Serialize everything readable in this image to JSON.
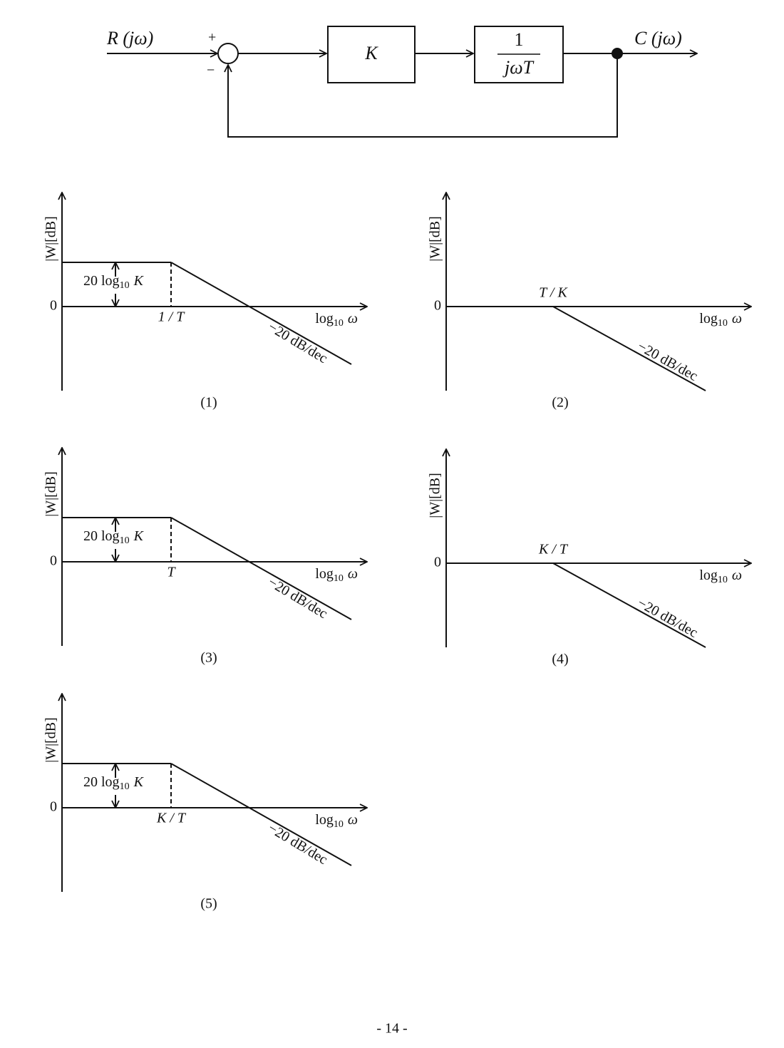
{
  "block_diagram": {
    "input": "R (jω)",
    "plus": "+",
    "minus": "−",
    "gain": "K",
    "integrator": {
      "numerator": "1",
      "denominator": "jωT"
    },
    "output": "C (jω)"
  },
  "plots": [
    {
      "caption": "(1)",
      "y_label": "|W|[dB]",
      "zero": "0",
      "gain_label": {
        "pre": "20 log",
        "sub": "10",
        "post": "K"
      },
      "break_label": "1 / T",
      "x_label": {
        "pre": "log",
        "sub": "10",
        "post": "ω"
      },
      "slope": "−20 dB/dec"
    },
    {
      "caption": "(2)",
      "y_label": "|W|[dB]",
      "zero": "0",
      "break_label": "T / K",
      "x_label": {
        "pre": "log",
        "sub": "10",
        "post": "ω"
      },
      "slope": "−20 dB/dec"
    },
    {
      "caption": "(3)",
      "y_label": "|W|[dB]",
      "zero": "0",
      "gain_label": {
        "pre": "20 log",
        "sub": "10",
        "post": "K"
      },
      "break_label": "T",
      "x_label": {
        "pre": "log",
        "sub": "10",
        "post": "ω"
      },
      "slope": "−20 dB/dec"
    },
    {
      "caption": "(4)",
      "y_label": "|W|[dB]",
      "zero": "0",
      "break_label": "K / T",
      "x_label": {
        "pre": "log",
        "sub": "10",
        "post": "ω"
      },
      "slope": "−20 dB/dec"
    },
    {
      "caption": "(5)",
      "y_label": "|W|[dB]",
      "zero": "0",
      "gain_label": {
        "pre": "20 log",
        "sub": "10",
        "post": "K"
      },
      "break_label": "K / T",
      "x_label": {
        "pre": "log",
        "sub": "10",
        "post": "ω"
      },
      "slope": "−20 dB/dec"
    }
  ],
  "footer": {
    "page": "- 14 -"
  }
}
